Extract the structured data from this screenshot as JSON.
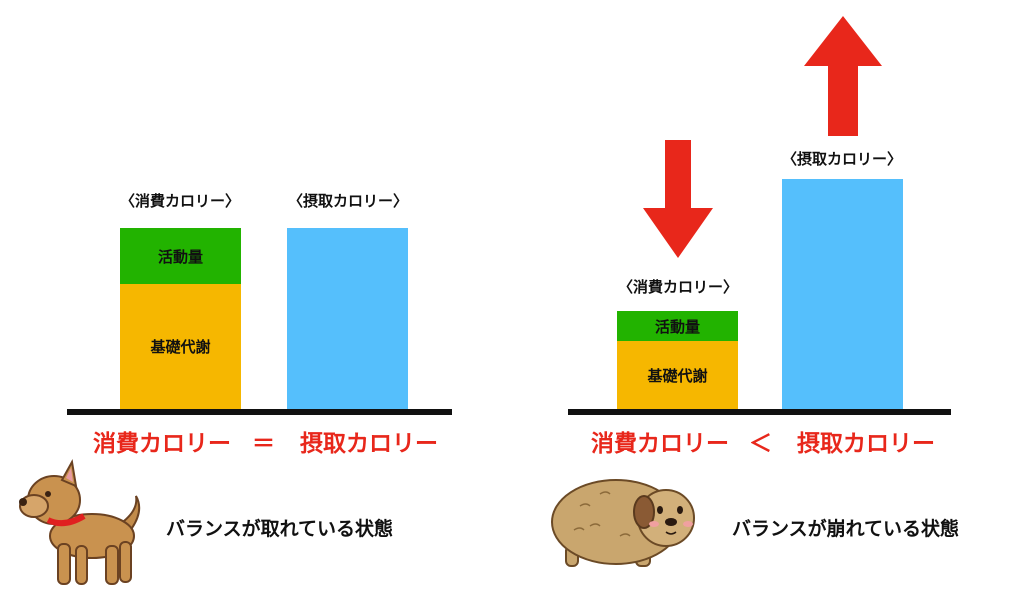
{
  "colors": {
    "activity": "#22b300",
    "bmr": "#f6b700",
    "intake": "#55bffc",
    "accent_red": "#e8271b",
    "baseline": "#111111"
  },
  "left_panel": {
    "consumption_label": "〈消費カロリー〉",
    "intake_label": "〈摂取カロリー〉",
    "activity_label": "活動量",
    "bmr_label": "基礎代謝",
    "equation": {
      "left": "消費カロリー",
      "operator": "＝",
      "right": "摂取カロリー"
    },
    "caption": "バランスが取れている状態",
    "illustration": "dog-icon"
  },
  "right_panel": {
    "consumption_label": "〈消費カロリー〉",
    "intake_label": "〈摂取カロリー〉",
    "activity_label": "活動量",
    "bmr_label": "基礎代謝",
    "equation": {
      "left": "消費カロリー",
      "operator": "＜",
      "right": "摂取カロリー"
    },
    "caption": "バランスが崩れている状態",
    "illustration": "fat-dog-icon",
    "arrows": [
      "arrow-down-icon",
      "arrow-up-icon"
    ]
  }
}
